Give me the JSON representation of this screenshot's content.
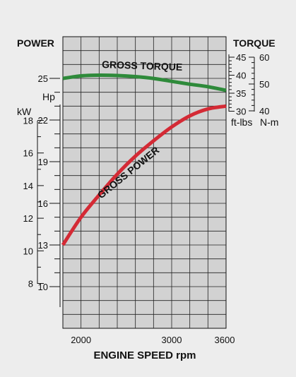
{
  "chart_data": {
    "type": "line",
    "left_title": "POWER",
    "right_title": "TORQUE",
    "xlabel": "ENGINE SPEED rpm",
    "x_ticks": [
      "2000",
      "3000",
      "3600"
    ],
    "xlim": [
      1800,
      3600
    ],
    "hp_axis": {
      "unit": "Hp",
      "ticks": [
        "25",
        "22",
        "19",
        "16",
        "13",
        "10"
      ],
      "lim": [
        7,
        28
      ]
    },
    "kw_axis": {
      "unit": "kW",
      "ticks": [
        "18",
        "16",
        "14",
        "12",
        "10",
        "8"
      ]
    },
    "ftlbs_axis": {
      "unit": "ft-lbs",
      "ticks": [
        "45",
        "40",
        "35",
        "30"
      ]
    },
    "nm_axis": {
      "unit": "N-m",
      "ticks": [
        "60",
        "50",
        "40"
      ]
    },
    "torque_lim": [
      30,
      45
    ],
    "series": [
      {
        "name": "GROSS TORQUE",
        "axis": "torque_ftlbs",
        "color": "#2e8a3a",
        "x": [
          1800,
          2000,
          2200,
          2400,
          2600,
          2800,
          3000,
          3200,
          3400,
          3600
        ],
        "values": [
          39.1,
          39.8,
          40.0,
          39.9,
          39.6,
          39.1,
          38.3,
          37.5,
          36.8,
          35.8
        ]
      },
      {
        "name": "GROSS POWER",
        "axis": "power_hp",
        "color": "#d42a35",
        "x": [
          1800,
          2000,
          2200,
          2400,
          2600,
          2800,
          3000,
          3200,
          3400,
          3600
        ],
        "values": [
          13.0,
          15.0,
          16.6,
          18.1,
          19.4,
          20.5,
          21.5,
          22.3,
          22.8,
          23.0
        ]
      }
    ]
  }
}
